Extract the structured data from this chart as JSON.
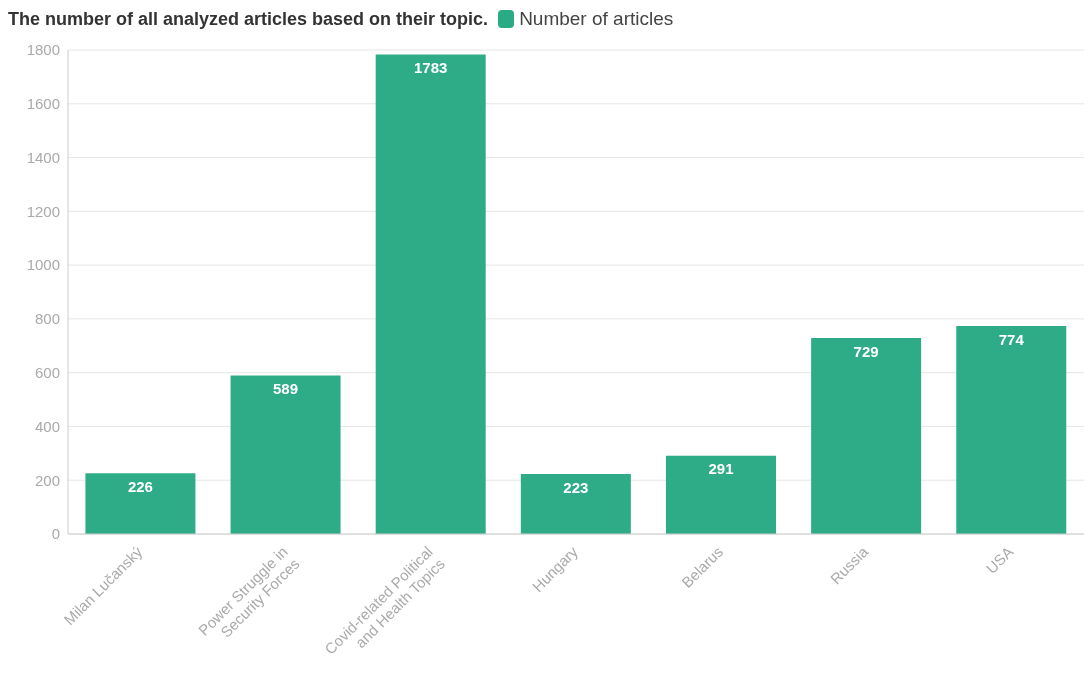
{
  "chart_data": {
    "type": "bar",
    "title": "The number of all analyzed articles based on their topic.",
    "categories": [
      "Milan Lučanský",
      "Power Struggle in Security Forces",
      "Covid-related Political and Health Topics",
      "Hungary",
      "Belarus",
      "Russia",
      "USA"
    ],
    "series": [
      {
        "name": "Number of articles",
        "color": "#2aaa85",
        "values": [
          226,
          589,
          1783,
          223,
          291,
          729,
          774
        ]
      }
    ],
    "ylim": [
      0,
      1800
    ],
    "yticks": [
      0,
      200,
      400,
      600,
      800,
      1000,
      1200,
      1400,
      1600,
      1800
    ],
    "grid": "y",
    "legend": "top",
    "data_labels": true
  }
}
